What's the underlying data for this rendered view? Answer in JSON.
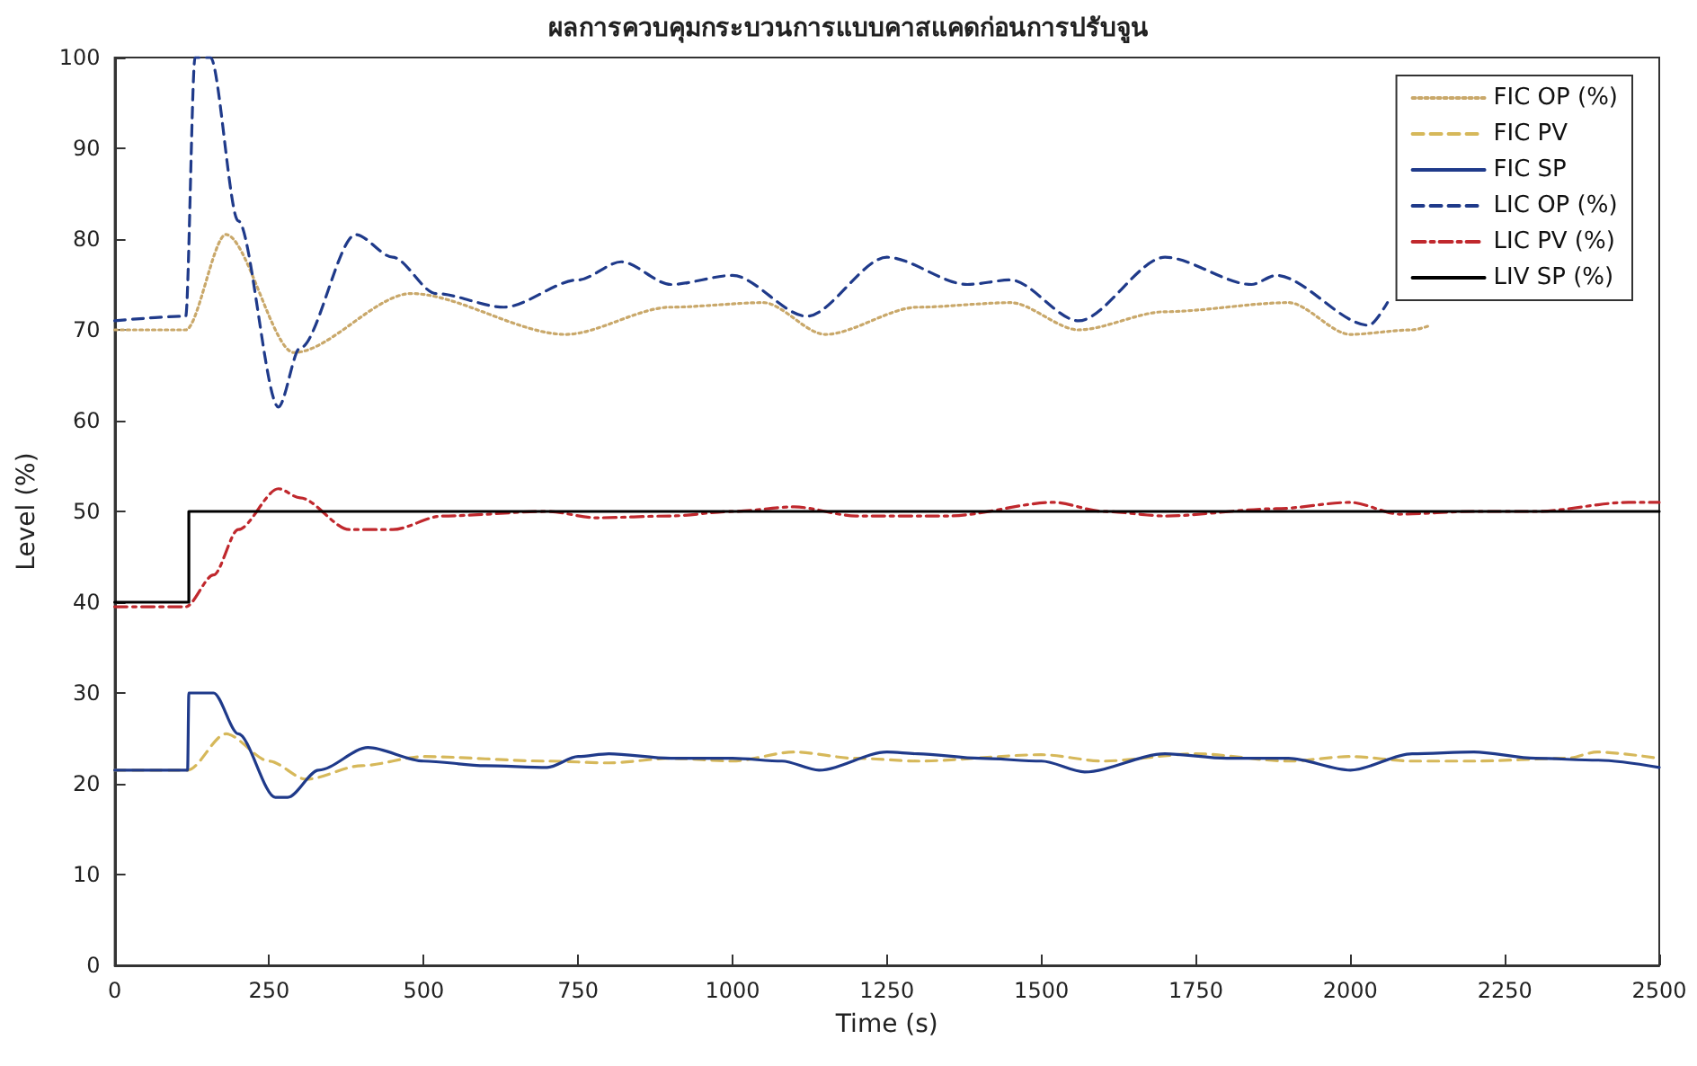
{
  "chart_data": {
    "type": "line",
    "title": "ผลการควบคุมกระบวนการแบบคาสแคดก่อนการปรับจูน",
    "xlabel": "Time (s)",
    "ylabel": "Level (%)",
    "xlim": [
      0,
      2500
    ],
    "xticks": [
      0,
      250,
      500,
      750,
      1000,
      1250,
      1500,
      1750,
      2000,
      2250,
      2500
    ],
    "ylim": [
      0,
      100
    ],
    "yticks": [
      0,
      10,
      20,
      30,
      40,
      50,
      60,
      70,
      80,
      90,
      100
    ],
    "grid": false,
    "legend": "top right",
    "marker": "none",
    "series": [
      {
        "name": "FIC OP (%)",
        "color": "#c9a86a",
        "line_style": "dotted",
        "x": [
          0,
          115,
          180,
          290,
          480,
          730,
          900,
          1050,
          1150,
          1300,
          1450,
          1560,
          1700,
          1900,
          2000,
          2100,
          2130
        ],
        "values": [
          70,
          70,
          80.5,
          67.5,
          74,
          69.5,
          72.5,
          73,
          69.5,
          72.5,
          73,
          70,
          72,
          73,
          69.5,
          70,
          70.5
        ]
      },
      {
        "name": "FIC PV",
        "color": "#d6b85a",
        "line_style": "dashed",
        "x": [
          0,
          118,
          180,
          250,
          310,
          400,
          500,
          700,
          800,
          900,
          1000,
          1100,
          1200,
          1300,
          1500,
          1600,
          1750,
          1900,
          2000,
          2100,
          2200,
          2350,
          2400,
          2500
        ],
        "values": [
          21.5,
          21.5,
          25.5,
          22.5,
          20.5,
          22,
          23,
          22.5,
          22.3,
          22.8,
          22.5,
          23.5,
          22.8,
          22.5,
          23.2,
          22.5,
          23.3,
          22.5,
          23,
          22.5,
          22.5,
          22.8,
          23.5,
          22.8
        ]
      },
      {
        "name": "FIC SP",
        "color": "#1f3a8a",
        "line_style": "solid",
        "x": [
          0,
          118,
          120,
          160,
          200,
          260,
          280,
          330,
          410,
          500,
          600,
          700,
          750,
          800,
          900,
          1000,
          1080,
          1140,
          1250,
          1300,
          1400,
          1500,
          1570,
          1700,
          1800,
          1900,
          2000,
          2100,
          2200,
          2300,
          2400,
          2500
        ],
        "values": [
          21.5,
          21.5,
          30,
          30,
          25.5,
          18.5,
          18.5,
          21.5,
          24,
          22.5,
          22,
          21.8,
          23,
          23.3,
          22.8,
          22.8,
          22.5,
          21.5,
          23.5,
          23.3,
          22.8,
          22.5,
          21.3,
          23.3,
          22.8,
          22.8,
          21.5,
          23.3,
          23.5,
          22.8,
          22.6,
          21.8
        ]
      },
      {
        "name": "LIC OP (%)",
        "color": "#1f3a8a",
        "line_style": "dashed",
        "x": [
          0,
          115,
          130,
          155,
          200,
          265,
          300,
          390,
          450,
          520,
          630,
          750,
          820,
          900,
          1000,
          1120,
          1250,
          1380,
          1450,
          1560,
          1700,
          1840,
          1880,
          2030,
          2060
        ],
        "values": [
          71,
          71.5,
          100,
          100,
          82,
          61.5,
          68,
          80.5,
          78,
          74,
          72.5,
          75.5,
          77.5,
          75,
          76,
          71.5,
          78,
          75,
          75.5,
          71,
          78,
          75,
          76,
          70.5,
          73
        ]
      },
      {
        "name": "LIC PV (%)",
        "color": "#c0282d",
        "line_style": "dashdot",
        "x": [
          0,
          115,
          160,
          200,
          265,
          300,
          380,
          450,
          530,
          700,
          780,
          900,
          1000,
          1100,
          1200,
          1350,
          1520,
          1600,
          1700,
          1880,
          2000,
          2080,
          2200,
          2300,
          2450,
          2500
        ],
        "values": [
          39.5,
          39.5,
          43,
          48,
          52.5,
          51.5,
          48,
          48,
          49.5,
          50,
          49.3,
          49.5,
          50,
          50.5,
          49.5,
          49.5,
          51,
          50,
          49.5,
          50.3,
          51,
          49.7,
          50,
          50,
          51,
          51
        ]
      },
      {
        "name": "LIV SP (%)",
        "color": "#000000",
        "line_style": "solid",
        "x": [
          0,
          120,
          120,
          2500
        ],
        "values": [
          40,
          40,
          50,
          50
        ]
      }
    ]
  }
}
